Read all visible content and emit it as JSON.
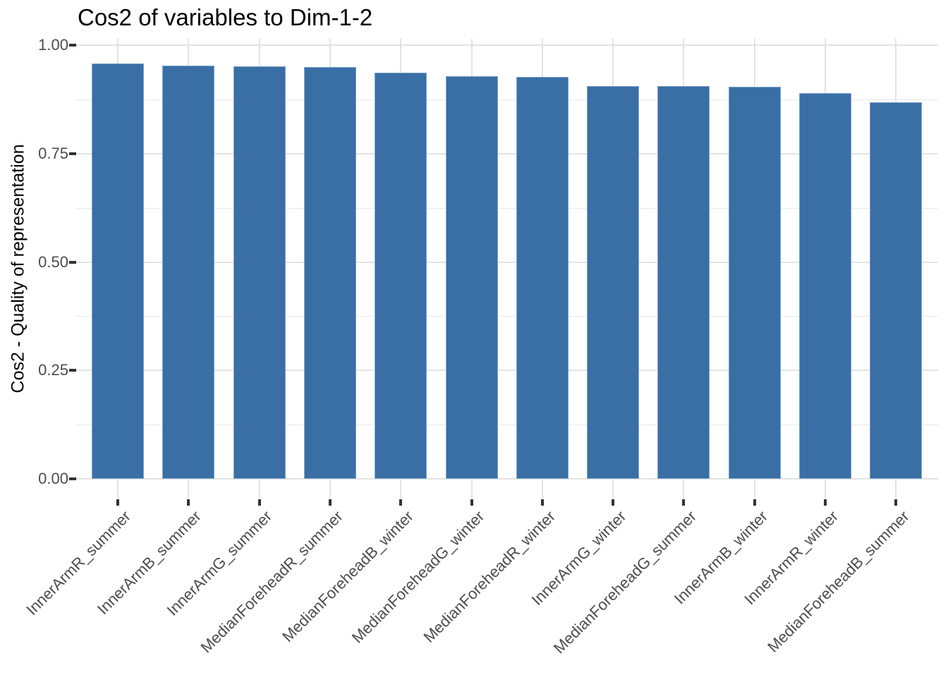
{
  "chart_data": {
    "type": "bar",
    "title": "Cos2 of variables to Dim-1-2",
    "xlabel": "",
    "ylabel": "Cos2 - Quality of representation",
    "categories": [
      "InnerArmR_summer",
      "InnerArmB_summer",
      "InnerArmG_summer",
      "MedianForeheadR_summer",
      "MedianForeheadB_winter",
      "MedianForeheadG_winter",
      "MedianForeheadR_winter",
      "InnerArmG_winter",
      "MedianForeheadG_summer",
      "InnerArmB_winter",
      "InnerArmR_winter",
      "MedianForeheadB_summer"
    ],
    "values": [
      0.958,
      0.953,
      0.952,
      0.95,
      0.936,
      0.929,
      0.927,
      0.906,
      0.905,
      0.904,
      0.889,
      0.869
    ],
    "ylim": [
      0,
      1.0
    ],
    "yticks": [
      0,
      0.25,
      0.5,
      0.75,
      1.0
    ],
    "ytick_labels": [
      "0.00",
      "0.25",
      "0.50",
      "0.75",
      "1.00"
    ],
    "yticks_minor": [
      0.125,
      0.375,
      0.625,
      0.875
    ],
    "grid": true,
    "legend_position": "none",
    "x_label_rotation_deg": 45,
    "colors": {
      "bar_fill": "#3A6FA5",
      "bar_edge": "#7FA6CC",
      "grid_major": "#E3E3E3",
      "grid_minor": "#E9E9E9",
      "axis_tick": "#333333",
      "tick_label": "#4D4D4D",
      "title": "#000000",
      "axis_title": "#000000",
      "background": "#FFFFFF"
    }
  }
}
